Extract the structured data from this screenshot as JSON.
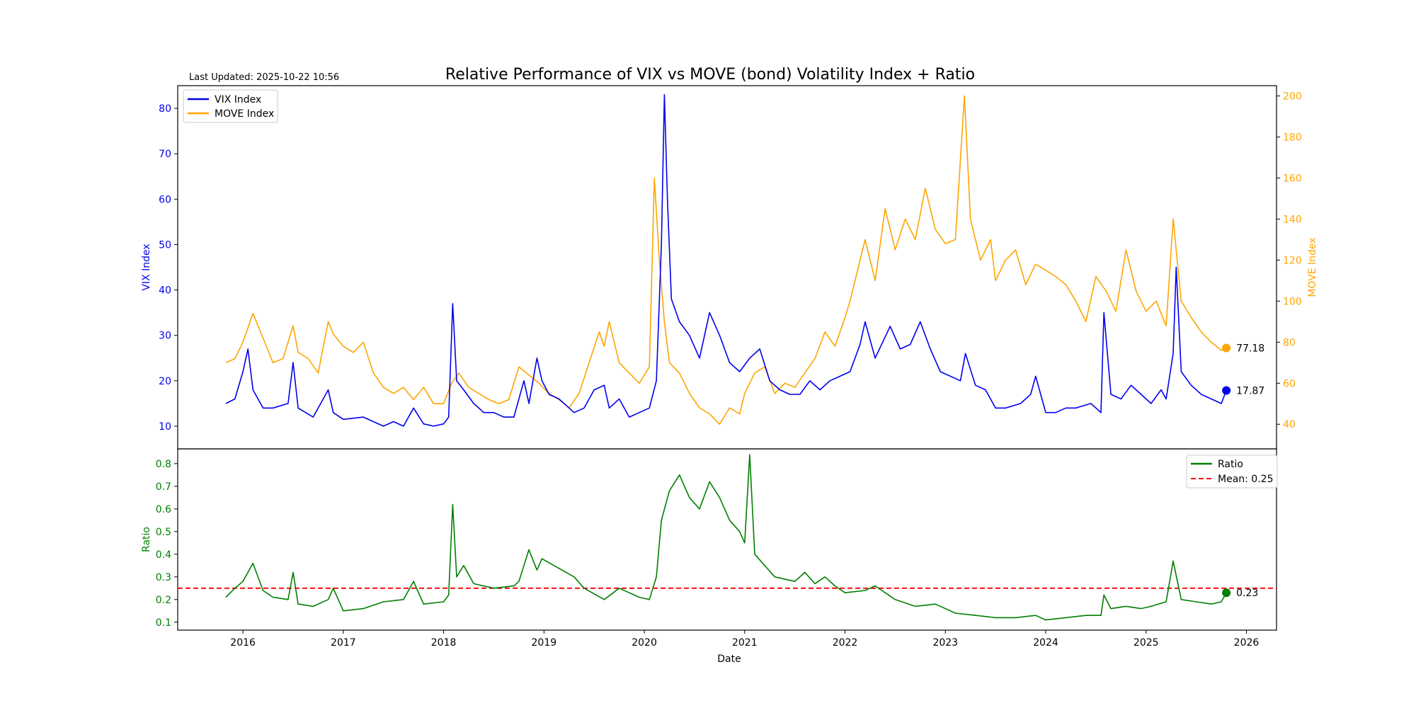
{
  "header": {
    "title": "Relative Performance of VIX vs MOVE (bond) Volatility Index + Ratio",
    "last_updated": "Last Updated: 2025-10-22 10:56"
  },
  "colors": {
    "vix": "#0000ee",
    "move": "#ffa500",
    "ratio": "#007f00",
    "mean": "#ff0000",
    "axis": "#000000"
  },
  "chart_data": [
    {
      "type": "line",
      "panel": "top",
      "xlabel": "",
      "ylabel_left": "VIX Index",
      "ylabel_right": "MOVE Index",
      "xlim": [
        2015.35,
        2026.3
      ],
      "ylim_left": [
        5.0,
        85.0
      ],
      "ylim_right": [
        28.0,
        205.0
      ],
      "yticks_left": [
        10,
        20,
        30,
        40,
        50,
        60,
        70,
        80
      ],
      "yticks_right": [
        40,
        60,
        80,
        100,
        120,
        140,
        160,
        180,
        200
      ],
      "legend_position": "top-left",
      "series": [
        {
          "name": "VIX Index",
          "axis": "left",
          "end_label": "17.87",
          "x": [
            2015.83,
            2015.92,
            2016.0,
            2016.05,
            2016.1,
            2016.2,
            2016.3,
            2016.45,
            2016.5,
            2016.55,
            2016.7,
            2016.85,
            2016.9,
            2017.0,
            2017.2,
            2017.3,
            2017.4,
            2017.5,
            2017.6,
            2017.7,
            2017.8,
            2017.9,
            2018.0,
            2018.05,
            2018.09,
            2018.13,
            2018.2,
            2018.3,
            2018.4,
            2018.5,
            2018.6,
            2018.7,
            2018.8,
            2018.85,
            2018.93,
            2018.98,
            2019.05,
            2019.15,
            2019.3,
            2019.4,
            2019.5,
            2019.6,
            2019.65,
            2019.75,
            2019.85,
            2019.95,
            2020.05,
            2020.12,
            2020.17,
            2020.2,
            2020.23,
            2020.27,
            2020.35,
            2020.45,
            2020.55,
            2020.65,
            2020.75,
            2020.85,
            2020.95,
            2021.05,
            2021.15,
            2021.25,
            2021.35,
            2021.45,
            2021.55,
            2021.65,
            2021.75,
            2021.85,
            2021.95,
            2022.05,
            2022.15,
            2022.2,
            2022.3,
            2022.45,
            2022.55,
            2022.65,
            2022.75,
            2022.85,
            2022.95,
            2023.05,
            2023.15,
            2023.2,
            2023.3,
            2023.4,
            2023.5,
            2023.6,
            2023.75,
            2023.85,
            2023.9,
            2024.0,
            2024.1,
            2024.2,
            2024.3,
            2024.45,
            2024.55,
            2024.58,
            2024.65,
            2024.75,
            2024.85,
            2024.95,
            2025.05,
            2025.15,
            2025.2,
            2025.27,
            2025.3,
            2025.35,
            2025.45,
            2025.55,
            2025.65,
            2025.75,
            2025.8
          ],
          "values": [
            15,
            16,
            22,
            27,
            18,
            14,
            14,
            15,
            24,
            14,
            12,
            18,
            13,
            11.5,
            12,
            11,
            10,
            11,
            10,
            14,
            10.5,
            10,
            10.5,
            12,
            37,
            20,
            18,
            15,
            13,
            13,
            12,
            12,
            20,
            15,
            25,
            20,
            17,
            16,
            13,
            14,
            18,
            19,
            14,
            16,
            12,
            13,
            14,
            20,
            50,
            83,
            60,
            38,
            33,
            30,
            25,
            35,
            30,
            24,
            22,
            25,
            27,
            20,
            18,
            17,
            17,
            20,
            18,
            20,
            21,
            22,
            28,
            33,
            25,
            32,
            27,
            28,
            33,
            27,
            22,
            21,
            20,
            26,
            19,
            18,
            14,
            14,
            15,
            17,
            21,
            13,
            13,
            14,
            14,
            15,
            13,
            35,
            17,
            16,
            19,
            17,
            15,
            18,
            16,
            26,
            45,
            22,
            19,
            17,
            16,
            15,
            17.87
          ]
        },
        {
          "name": "MOVE Index",
          "axis": "right",
          "end_label": "77.18",
          "x": [
            2015.83,
            2015.92,
            2016.0,
            2016.1,
            2016.2,
            2016.3,
            2016.4,
            2016.5,
            2016.55,
            2016.65,
            2016.75,
            2016.85,
            2016.9,
            2017.0,
            2017.1,
            2017.2,
            2017.3,
            2017.4,
            2017.5,
            2017.6,
            2017.7,
            2017.8,
            2017.9,
            2018.0,
            2018.08,
            2018.15,
            2018.25,
            2018.35,
            2018.45,
            2018.55,
            2018.65,
            2018.75,
            2018.85,
            2018.95,
            2019.05,
            2019.15,
            2019.25,
            2019.35,
            2019.45,
            2019.55,
            2019.6,
            2019.65,
            2019.75,
            2019.85,
            2019.95,
            2020.05,
            2020.1,
            2020.15,
            2020.2,
            2020.25,
            2020.35,
            2020.45,
            2020.55,
            2020.65,
            2020.75,
            2020.85,
            2020.95,
            2021.0,
            2021.1,
            2021.2,
            2021.3,
            2021.4,
            2021.5,
            2021.6,
            2021.7,
            2021.8,
            2021.9,
            2022.0,
            2022.05,
            2022.15,
            2022.2,
            2022.3,
            2022.4,
            2022.5,
            2022.6,
            2022.7,
            2022.8,
            2022.9,
            2023.0,
            2023.1,
            2023.19,
            2023.25,
            2023.35,
            2023.45,
            2023.5,
            2023.6,
            2023.7,
            2023.8,
            2023.9,
            2024.0,
            2024.1,
            2024.2,
            2024.3,
            2024.4,
            2024.5,
            2024.6,
            2024.7,
            2024.8,
            2024.9,
            2025.0,
            2025.1,
            2025.2,
            2025.27,
            2025.35,
            2025.45,
            2025.55,
            2025.65,
            2025.75,
            2025.8
          ],
          "values": [
            70,
            72,
            80,
            94,
            82,
            70,
            72,
            88,
            75,
            72,
            65,
            90,
            84,
            78,
            75,
            80,
            65,
            58,
            55,
            58,
            52,
            58,
            50,
            50,
            60,
            65,
            58,
            55,
            52,
            50,
            52,
            68,
            64,
            60,
            55,
            52,
            48,
            55,
            70,
            85,
            78,
            90,
            70,
            65,
            60,
            68,
            160,
            120,
            90,
            70,
            65,
            55,
            48,
            45,
            40,
            48,
            45,
            55,
            65,
            68,
            55,
            60,
            58,
            65,
            72,
            85,
            78,
            92,
            100,
            120,
            130,
            110,
            145,
            125,
            140,
            130,
            155,
            135,
            128,
            130,
            200,
            140,
            120,
            130,
            110,
            120,
            125,
            108,
            118,
            115,
            112,
            108,
            100,
            90,
            112,
            105,
            95,
            125,
            105,
            95,
            100,
            88,
            140,
            100,
            92,
            85,
            80,
            76,
            77.18
          ]
        }
      ]
    },
    {
      "type": "line",
      "panel": "bottom",
      "xlabel": "Date",
      "ylabel": "Ratio",
      "xlim": [
        2015.35,
        2026.3
      ],
      "ylim": [
        0.065,
        0.865
      ],
      "yticks": [
        0.1,
        0.2,
        0.3,
        0.4,
        0.5,
        0.6,
        0.7,
        0.8
      ],
      "xticks": [
        2016,
        2017,
        2018,
        2019,
        2020,
        2021,
        2022,
        2023,
        2024,
        2025,
        2026
      ],
      "mean": 0.25,
      "legend_position": "top-right",
      "series": [
        {
          "name": "Ratio",
          "end_label": "0.23",
          "x": [
            2015.83,
            2015.92,
            2016.0,
            2016.1,
            2016.2,
            2016.3,
            2016.45,
            2016.5,
            2016.55,
            2016.7,
            2016.85,
            2016.9,
            2017.0,
            2017.2,
            2017.4,
            2017.6,
            2017.7,
            2017.8,
            2018.0,
            2018.05,
            2018.09,
            2018.13,
            2018.2,
            2018.3,
            2018.5,
            2018.7,
            2018.75,
            2018.85,
            2018.93,
            2018.98,
            2019.1,
            2019.3,
            2019.4,
            2019.6,
            2019.75,
            2019.95,
            2020.05,
            2020.12,
            2020.17,
            2020.25,
            2020.35,
            2020.45,
            2020.55,
            2020.65,
            2020.75,
            2020.85,
            2020.95,
            2021.0,
            2021.05,
            2021.1,
            2021.2,
            2021.3,
            2021.5,
            2021.6,
            2021.7,
            2021.8,
            2021.9,
            2022.0,
            2022.2,
            2022.3,
            2022.5,
            2022.7,
            2022.9,
            2023.1,
            2023.3,
            2023.5,
            2023.7,
            2023.9,
            2024.0,
            2024.2,
            2024.4,
            2024.55,
            2024.58,
            2024.65,
            2024.8,
            2024.95,
            2025.05,
            2025.2,
            2025.27,
            2025.35,
            2025.5,
            2025.65,
            2025.75,
            2025.8
          ],
          "values": [
            0.21,
            0.25,
            0.28,
            0.36,
            0.24,
            0.21,
            0.2,
            0.32,
            0.18,
            0.17,
            0.2,
            0.25,
            0.15,
            0.16,
            0.19,
            0.2,
            0.28,
            0.18,
            0.19,
            0.22,
            0.62,
            0.3,
            0.35,
            0.27,
            0.25,
            0.26,
            0.28,
            0.42,
            0.33,
            0.38,
            0.35,
            0.3,
            0.25,
            0.2,
            0.25,
            0.21,
            0.2,
            0.3,
            0.55,
            0.68,
            0.75,
            0.65,
            0.6,
            0.72,
            0.65,
            0.55,
            0.5,
            0.45,
            0.84,
            0.4,
            0.35,
            0.3,
            0.28,
            0.32,
            0.27,
            0.3,
            0.26,
            0.23,
            0.24,
            0.26,
            0.2,
            0.17,
            0.18,
            0.14,
            0.13,
            0.12,
            0.12,
            0.13,
            0.11,
            0.12,
            0.13,
            0.13,
            0.22,
            0.16,
            0.17,
            0.16,
            0.17,
            0.19,
            0.37,
            0.2,
            0.19,
            0.18,
            0.19,
            0.23
          ]
        }
      ]
    }
  ]
}
